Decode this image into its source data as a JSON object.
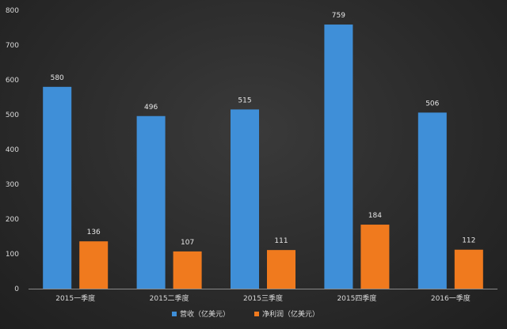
{
  "chart_data": {
    "type": "bar",
    "title": "",
    "xlabel": "",
    "ylabel": "",
    "categories": [
      "2015一季度",
      "2015二季度",
      "2015三季度",
      "2015四季度",
      "2016一季度"
    ],
    "series": [
      {
        "name": "营收（亿美元）",
        "values": [
          580,
          496,
          515,
          759,
          506
        ],
        "color": "#3f8fd8"
      },
      {
        "name": "净利润（亿美元）",
        "values": [
          136,
          107,
          111,
          184,
          112
        ],
        "color": "#f07a1e"
      }
    ],
    "ylim": [
      0,
      800
    ],
    "yticks": [
      0,
      100,
      200,
      300,
      400,
      500,
      600,
      700,
      800
    ],
    "grid": false,
    "legend_position": "bottom-center"
  }
}
